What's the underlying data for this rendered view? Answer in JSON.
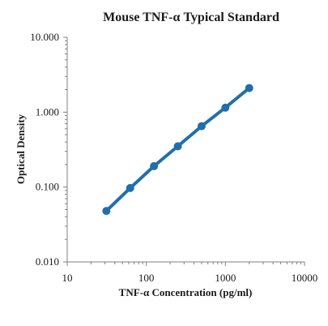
{
  "chart_data": {
    "type": "line",
    "title": "Mouse TNF-α Typical Standard",
    "xlabel": "TNF-α Concentration (pg/ml)",
    "ylabel": "Optical Density",
    "x_scale": "log",
    "y_scale": "log",
    "xlim": [
      10,
      10000
    ],
    "ylim": [
      0.01,
      10
    ],
    "x_ticks": [
      10,
      100,
      1000,
      10000
    ],
    "x_tick_labels": [
      "10",
      "100",
      "1000",
      "10000"
    ],
    "y_ticks": [
      0.01,
      0.1,
      1,
      10
    ],
    "y_tick_labels": [
      "0.010",
      "0.100",
      "1.000",
      "10.000"
    ],
    "grid": false,
    "legend": "none",
    "series": [
      {
        "color": "#1f6fad",
        "marker": "circle",
        "x": [
          31.25,
          62.5,
          125,
          250,
          500,
          1000,
          2000
        ],
        "y": [
          0.048,
          0.097,
          0.19,
          0.35,
          0.65,
          1.15,
          2.1
        ]
      }
    ]
  }
}
